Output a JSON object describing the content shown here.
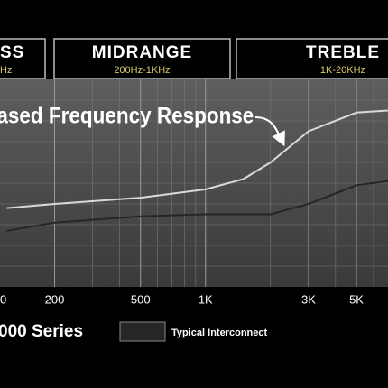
{
  "chart_data": {
    "type": "line",
    "bands": [
      {
        "name": "SS",
        "range": "Hz"
      },
      {
        "name": "MIDRANGE",
        "range": "200Hz-1KHz"
      },
      {
        "name": "TREBLE",
        "range": "1K-20KHz"
      }
    ],
    "annotation": "ased Frequency Response",
    "log_x": true,
    "grid": true,
    "xlim": [
      115,
      7000
    ],
    "ylim": [
      0,
      100
    ],
    "xticks": [
      {
        "value": 100,
        "label": "0"
      },
      200,
      500,
      {
        "value": 1000,
        "label": "1K"
      },
      {
        "value": 3000,
        "label": "3K"
      },
      {
        "value": 5000,
        "label": "5K"
      }
    ],
    "series": [
      {
        "name": "000 Series",
        "color": "#d9d9d9",
        "x": [
          120,
          200,
          500,
          1000,
          1500,
          2000,
          3000,
          5000,
          7000
        ],
        "values": [
          38,
          40,
          43,
          47,
          52,
          60,
          75,
          84,
          85
        ]
      },
      {
        "name": "Typical Interconnect",
        "color": "#262626",
        "x": [
          120,
          200,
          500,
          1000,
          2000,
          3000,
          5000,
          7000
        ],
        "values": [
          27,
          31,
          34,
          35,
          35,
          40,
          49,
          51
        ]
      }
    ]
  }
}
